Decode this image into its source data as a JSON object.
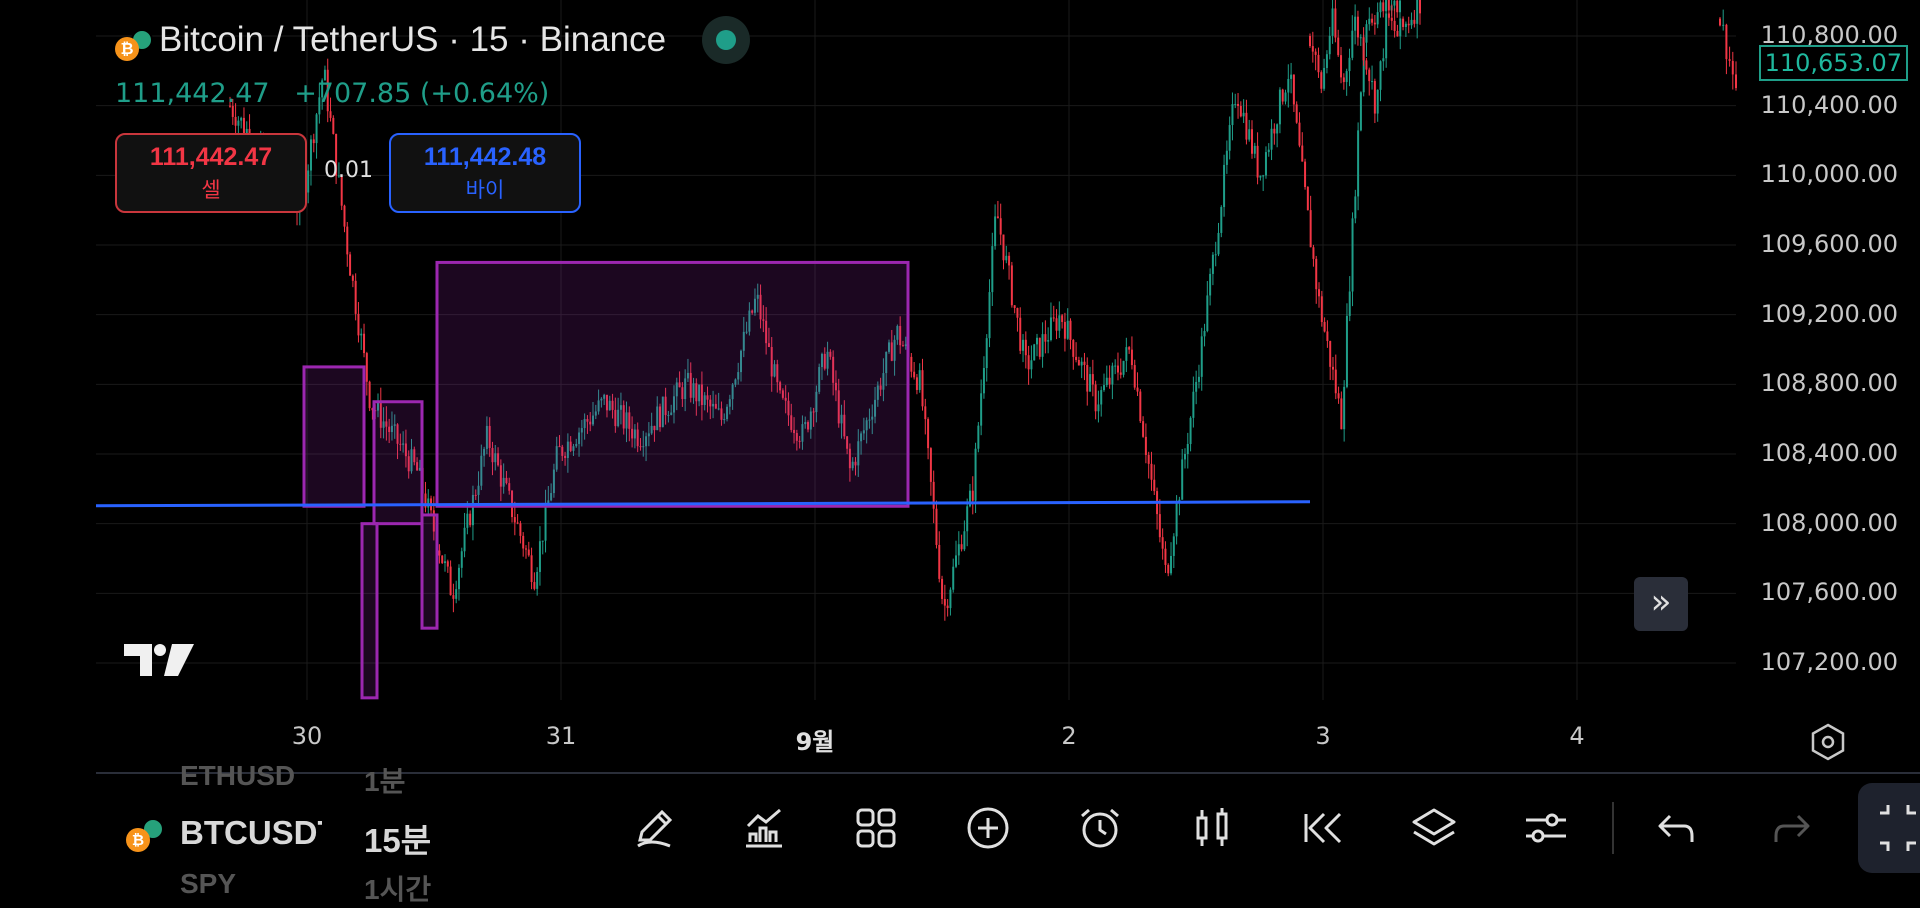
{
  "header": {
    "title": "Bitcoin / TetherUS · 15 · Binance",
    "last_price": "111,442.47",
    "change": "+707.85 (+0.64%)"
  },
  "trade": {
    "sell_price": "111,442.47",
    "sell_label": "셀",
    "spread": "0.01",
    "buy_price": "111,442.48",
    "buy_label": "바이"
  },
  "price_axis": {
    "labels": [
      "110,800.00",
      "110,400.00",
      "110,000.00",
      "109,600.00",
      "109,200.00",
      "108,800.00",
      "108,400.00",
      "108,000.00",
      "107,600.00",
      "107,200.00"
    ],
    "current_price": "110,653.07"
  },
  "time_axis": {
    "labels": [
      "30",
      "31",
      "9월",
      "2",
      "3",
      "4"
    ]
  },
  "bottom_bar": {
    "ghost_top_symbol": "ETHUSD",
    "ghost_top_interval": "1분",
    "symbol": "BTCUSDT",
    "interval": "15분",
    "ghost_bottom_symbol": "SPY",
    "ghost_bottom_interval": "1시간",
    "tools": [
      "pencil-icon",
      "indicators-icon",
      "layout-grid-icon",
      "add-circle-icon",
      "alarm-clock-icon",
      "candlestick-icon",
      "replay-icon",
      "layers-icon",
      "settings-sliders-icon",
      "undo-icon",
      "redo-icon"
    ]
  },
  "colors": {
    "up": "#1f9e89",
    "down": "#f23645",
    "box": "#9c27b0",
    "hline": "#2962ff",
    "background": "#000000"
  },
  "chart_data": {
    "type": "candlestick",
    "symbol": "Bitcoin / TetherUS",
    "interval": "15",
    "exchange": "Binance",
    "ylim": [
      106900,
      111100
    ],
    "x_labels": [
      "30",
      "31",
      "9월",
      "2",
      "3",
      "4"
    ],
    "price_path": [
      {
        "t": 0.0,
        "p": 110400
      },
      {
        "t": 0.06,
        "p": 109800
      },
      {
        "t": 0.08,
        "p": 110600
      },
      {
        "t": 0.1,
        "p": 109600
      },
      {
        "t": 0.12,
        "p": 108700
      },
      {
        "t": 0.16,
        "p": 108300
      },
      {
        "t": 0.19,
        "p": 107600
      },
      {
        "t": 0.22,
        "p": 108500
      },
      {
        "t": 0.26,
        "p": 107700
      },
      {
        "t": 0.28,
        "p": 108400
      },
      {
        "t": 0.32,
        "p": 108700
      },
      {
        "t": 0.35,
        "p": 108500
      },
      {
        "t": 0.39,
        "p": 108800
      },
      {
        "t": 0.42,
        "p": 108600
      },
      {
        "t": 0.45,
        "p": 109300
      },
      {
        "t": 0.47,
        "p": 108700
      },
      {
        "t": 0.49,
        "p": 108500
      },
      {
        "t": 0.51,
        "p": 109000
      },
      {
        "t": 0.53,
        "p": 108300
      },
      {
        "t": 0.57,
        "p": 109100
      },
      {
        "t": 0.59,
        "p": 108800
      },
      {
        "t": 0.61,
        "p": 107500
      },
      {
        "t": 0.635,
        "p": 108200
      },
      {
        "t": 0.655,
        "p": 109800
      },
      {
        "t": 0.68,
        "p": 108900
      },
      {
        "t": 0.71,
        "p": 109200
      },
      {
        "t": 0.74,
        "p": 108700
      },
      {
        "t": 0.77,
        "p": 109000
      },
      {
        "t": 0.8,
        "p": 107700
      },
      {
        "t": 0.83,
        "p": 109000
      },
      {
        "t": 0.86,
        "p": 110500
      },
      {
        "t": 0.88,
        "p": 110000
      },
      {
        "t": 0.905,
        "p": 110600
      },
      {
        "t": 0.93,
        "p": 109300
      },
      {
        "t": 0.95,
        "p": 108600
      },
      {
        "t": 0.97,
        "p": 110900
      },
      {
        "t": 1.0,
        "p": 111000
      }
    ],
    "right_segment": [
      {
        "t": 0.0,
        "p": 110800
      },
      {
        "t": 0.1,
        "p": 110500
      },
      {
        "t": 0.2,
        "p": 110900
      },
      {
        "t": 0.3,
        "p": 110500
      },
      {
        "t": 0.4,
        "p": 110900
      },
      {
        "t": 0.5,
        "p": 110700
      },
      {
        "t": 0.6,
        "p": 110400
      },
      {
        "t": 0.7,
        "p": 110900
      },
      {
        "t": 0.8,
        "p": 110800
      },
      {
        "t": 1.0,
        "p": 111000
      }
    ],
    "drawings": {
      "horizontal_line_price": 108120,
      "boxes": [
        {
          "from": "30",
          "to_fraction": 0.24,
          "top": 108900,
          "bottom": 108100
        },
        {
          "from_fraction": 0.27,
          "to_fraction": 0.33,
          "top": 108700,
          "bottom": 108000
        },
        {
          "from_fraction": 0.34,
          "to_fraction": 0.87,
          "top": 109500,
          "bottom": 108100
        },
        {
          "from_fraction": 0.265,
          "to_fraction": 0.275,
          "top": 108000,
          "bottom": 107000
        },
        {
          "from_fraction": 0.33,
          "to_fraction": 0.34,
          "top": 108050,
          "bottom": 107400
        }
      ]
    }
  }
}
